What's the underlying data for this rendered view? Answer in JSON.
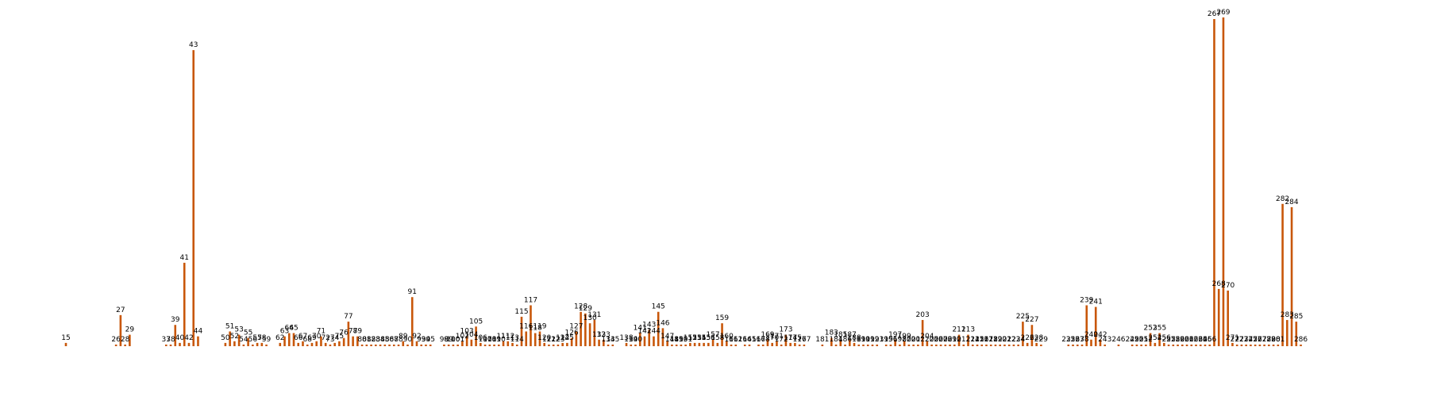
{
  "colors": {
    "bar": "#c8570a",
    "text": "#000000",
    "background": "#ffffff"
  },
  "chart_data": {
    "type": "bar",
    "title": "",
    "xlabel": "",
    "ylabel": "",
    "axes_visible": false,
    "grid": false,
    "legend": "none",
    "ylim": [
      0,
      100
    ],
    "x_start": 1,
    "x_end": 287,
    "labeled_bars": [
      {
        "x": 15,
        "value": 1.0
      },
      {
        "x": 26,
        "value": 0.5
      },
      {
        "x": 27,
        "value": 9.5
      },
      {
        "x": 28,
        "value": 0.5
      },
      {
        "x": 29,
        "value": 3.5
      },
      {
        "x": 37,
        "value": 0.5
      },
      {
        "x": 38,
        "value": 0.5
      },
      {
        "x": 39,
        "value": 6.5
      },
      {
        "x": 40,
        "value": 1.0
      },
      {
        "x": 41,
        "value": 25.5
      },
      {
        "x": 42,
        "value": 1.0
      },
      {
        "x": 43,
        "value": 90.5
      },
      {
        "x": 44,
        "value": 3.0
      },
      {
        "x": 50,
        "value": 1.0
      },
      {
        "x": 51,
        "value": 4.5
      },
      {
        "x": 52,
        "value": 1.5
      },
      {
        "x": 53,
        "value": 3.5
      },
      {
        "x": 54,
        "value": 0.5
      },
      {
        "x": 55,
        "value": 2.5
      },
      {
        "x": 56,
        "value": 0.5
      },
      {
        "x": 57,
        "value": 1.0
      },
      {
        "x": 58,
        "value": 1.0
      },
      {
        "x": 59,
        "value": 0.5
      },
      {
        "x": 62,
        "value": 1.0
      },
      {
        "x": 63,
        "value": 3.0
      },
      {
        "x": 64,
        "value": 4.0
      },
      {
        "x": 65,
        "value": 4.0
      },
      {
        "x": 66,
        "value": 1.0
      },
      {
        "x": 67,
        "value": 1.5
      },
      {
        "x": 68,
        "value": 0.5
      },
      {
        "x": 69,
        "value": 1.0
      },
      {
        "x": 70,
        "value": 1.5
      },
      {
        "x": 71,
        "value": 3.0
      },
      {
        "x": 72,
        "value": 1.0
      },
      {
        "x": 73,
        "value": 0.5
      },
      {
        "x": 74,
        "value": 1.0
      },
      {
        "x": 75,
        "value": 1.5
      },
      {
        "x": 76,
        "value": 2.5
      },
      {
        "x": 77,
        "value": 7.5
      },
      {
        "x": 78,
        "value": 3.0
      },
      {
        "x": 79,
        "value": 3.0
      },
      {
        "x": 80,
        "value": 0.5
      },
      {
        "x": 81,
        "value": 0.5
      },
      {
        "x": 82,
        "value": 0.5
      },
      {
        "x": 83,
        "value": 0.5
      },
      {
        "x": 84,
        "value": 0.5
      },
      {
        "x": 85,
        "value": 0.5
      },
      {
        "x": 86,
        "value": 0.5
      },
      {
        "x": 87,
        "value": 0.5
      },
      {
        "x": 88,
        "value": 0.5
      },
      {
        "x": 89,
        "value": 1.5
      },
      {
        "x": 90,
        "value": 0.5
      },
      {
        "x": 91,
        "value": 15.0
      },
      {
        "x": 92,
        "value": 1.5
      },
      {
        "x": 93,
        "value": 0.5
      },
      {
        "x": 94,
        "value": 0.5
      },
      {
        "x": 95,
        "value": 0.5
      },
      {
        "x": 98,
        "value": 0.5
      },
      {
        "x": 99,
        "value": 0.5
      },
      {
        "x": 100,
        "value": 0.5
      },
      {
        "x": 101,
        "value": 0.5
      },
      {
        "x": 102,
        "value": 1.5
      },
      {
        "x": 103,
        "value": 3.0
      },
      {
        "x": 104,
        "value": 2.0
      },
      {
        "x": 105,
        "value": 6.0
      },
      {
        "x": 106,
        "value": 1.0
      },
      {
        "x": 107,
        "value": 0.5
      },
      {
        "x": 108,
        "value": 0.5
      },
      {
        "x": 109,
        "value": 0.5
      },
      {
        "x": 110,
        "value": 0.5
      },
      {
        "x": 111,
        "value": 1.5
      },
      {
        "x": 112,
        "value": 1.5
      },
      {
        "x": 113,
        "value": 1.0
      },
      {
        "x": 114,
        "value": 0.5
      },
      {
        "x": 115,
        "value": 9.0
      },
      {
        "x": 116,
        "value": 4.5
      },
      {
        "x": 117,
        "value": 12.5
      },
      {
        "x": 118,
        "value": 4.0
      },
      {
        "x": 119,
        "value": 4.5
      },
      {
        "x": 120,
        "value": 1.0
      },
      {
        "x": 121,
        "value": 0.5
      },
      {
        "x": 122,
        "value": 0.5
      },
      {
        "x": 123,
        "value": 0.5
      },
      {
        "x": 124,
        "value": 1.0
      },
      {
        "x": 125,
        "value": 1.0
      },
      {
        "x": 126,
        "value": 2.5
      },
      {
        "x": 127,
        "value": 4.5
      },
      {
        "x": 128,
        "value": 10.5
      },
      {
        "x": 129,
        "value": 10.0
      },
      {
        "x": 130,
        "value": 7.0
      },
      {
        "x": 131,
        "value": 8.0
      },
      {
        "x": 132,
        "value": 2.0
      },
      {
        "x": 133,
        "value": 2.0
      },
      {
        "x": 134,
        "value": 0.5
      },
      {
        "x": 135,
        "value": 0.5
      },
      {
        "x": 138,
        "value": 1.0
      },
      {
        "x": 139,
        "value": 0.5
      },
      {
        "x": 140,
        "value": 0.5
      },
      {
        "x": 141,
        "value": 4.0
      },
      {
        "x": 142,
        "value": 3.0
      },
      {
        "x": 143,
        "value": 5.0
      },
      {
        "x": 144,
        "value": 3.0
      },
      {
        "x": 145,
        "value": 10.5
      },
      {
        "x": 146,
        "value": 5.5
      },
      {
        "x": 147,
        "value": 1.5
      },
      {
        "x": 148,
        "value": 0.5
      },
      {
        "x": 149,
        "value": 0.5
      },
      {
        "x": 150,
        "value": 0.5
      },
      {
        "x": 151,
        "value": 0.5
      },
      {
        "x": 152,
        "value": 1.0
      },
      {
        "x": 153,
        "value": 1.0
      },
      {
        "x": 154,
        "value": 1.0
      },
      {
        "x": 155,
        "value": 1.0
      },
      {
        "x": 156,
        "value": 1.0
      },
      {
        "x": 157,
        "value": 2.0
      },
      {
        "x": 158,
        "value": 1.0
      },
      {
        "x": 159,
        "value": 7.0
      },
      {
        "x": 160,
        "value": 1.5
      },
      {
        "x": 161,
        "value": 0.5
      },
      {
        "x": 162,
        "value": 0.5
      },
      {
        "x": 164,
        "value": 0.5
      },
      {
        "x": 165,
        "value": 0.5
      },
      {
        "x": 167,
        "value": 0.5
      },
      {
        "x": 168,
        "value": 0.5
      },
      {
        "x": 169,
        "value": 2.0
      },
      {
        "x": 170,
        "value": 1.0
      },
      {
        "x": 171,
        "value": 1.5
      },
      {
        "x": 172,
        "value": 0.5
      },
      {
        "x": 173,
        "value": 3.5
      },
      {
        "x": 174,
        "value": 1.0
      },
      {
        "x": 175,
        "value": 1.0
      },
      {
        "x": 176,
        "value": 0.5
      },
      {
        "x": 177,
        "value": 0.5
      },
      {
        "x": 181,
        "value": 0.5
      },
      {
        "x": 183,
        "value": 2.5
      },
      {
        "x": 184,
        "value": 0.5
      },
      {
        "x": 185,
        "value": 2.0
      },
      {
        "x": 186,
        "value": 0.5
      },
      {
        "x": 187,
        "value": 2.0
      },
      {
        "x": 188,
        "value": 1.0
      },
      {
        "x": 189,
        "value": 0.5
      },
      {
        "x": 190,
        "value": 0.5
      },
      {
        "x": 191,
        "value": 0.5
      },
      {
        "x": 192,
        "value": 0.5
      },
      {
        "x": 193,
        "value": 0.5
      },
      {
        "x": 195,
        "value": 0.5
      },
      {
        "x": 196,
        "value": 0.5
      },
      {
        "x": 197,
        "value": 2.0
      },
      {
        "x": 198,
        "value": 0.5
      },
      {
        "x": 199,
        "value": 1.5
      },
      {
        "x": 200,
        "value": 0.5
      },
      {
        "x": 201,
        "value": 0.5
      },
      {
        "x": 202,
        "value": 0.5
      },
      {
        "x": 203,
        "value": 8.0
      },
      {
        "x": 204,
        "value": 1.5
      },
      {
        "x": 205,
        "value": 0.5
      },
      {
        "x": 206,
        "value": 0.5
      },
      {
        "x": 207,
        "value": 0.5
      },
      {
        "x": 208,
        "value": 0.5
      },
      {
        "x": 209,
        "value": 0.5
      },
      {
        "x": 210,
        "value": 0.5
      },
      {
        "x": 211,
        "value": 3.5
      },
      {
        "x": 212,
        "value": 0.5
      },
      {
        "x": 213,
        "value": 3.5
      },
      {
        "x": 214,
        "value": 0.5
      },
      {
        "x": 215,
        "value": 0.5
      },
      {
        "x": 216,
        "value": 0.5
      },
      {
        "x": 217,
        "value": 0.5
      },
      {
        "x": 218,
        "value": 0.5
      },
      {
        "x": 219,
        "value": 0.5
      },
      {
        "x": 220,
        "value": 0.5
      },
      {
        "x": 221,
        "value": 0.5
      },
      {
        "x": 222,
        "value": 0.5
      },
      {
        "x": 223,
        "value": 0.5
      },
      {
        "x": 224,
        "value": 0.5
      },
      {
        "x": 225,
        "value": 7.5
      },
      {
        "x": 226,
        "value": 1.0
      },
      {
        "x": 227,
        "value": 6.5
      },
      {
        "x": 228,
        "value": 1.0
      },
      {
        "x": 229,
        "value": 0.5
      },
      {
        "x": 235,
        "value": 0.5
      },
      {
        "x": 236,
        "value": 0.5
      },
      {
        "x": 237,
        "value": 0.5
      },
      {
        "x": 238,
        "value": 0.5
      },
      {
        "x": 239,
        "value": 12.5
      },
      {
        "x": 240,
        "value": 2.0
      },
      {
        "x": 241,
        "value": 12.0
      },
      {
        "x": 242,
        "value": 2.0
      },
      {
        "x": 243,
        "value": 0.5
      },
      {
        "x": 246,
        "value": 0.5
      },
      {
        "x": 249,
        "value": 0.5
      },
      {
        "x": 250,
        "value": 0.5
      },
      {
        "x": 251,
        "value": 0.5
      },
      {
        "x": 252,
        "value": 0.5
      },
      {
        "x": 253,
        "value": 4.0
      },
      {
        "x": 254,
        "value": 1.0
      },
      {
        "x": 255,
        "value": 4.0
      },
      {
        "x": 256,
        "value": 1.0
      },
      {
        "x": 257,
        "value": 0.5
      },
      {
        "x": 258,
        "value": 0.5
      },
      {
        "x": 259,
        "value": 0.5
      },
      {
        "x": 260,
        "value": 0.5
      },
      {
        "x": 261,
        "value": 0.5
      },
      {
        "x": 262,
        "value": 0.5
      },
      {
        "x": 263,
        "value": 0.5
      },
      {
        "x": 264,
        "value": 0.5
      },
      {
        "x": 265,
        "value": 0.5
      },
      {
        "x": 266,
        "value": 0.5
      },
      {
        "x": 267,
        "value": 100.0
      },
      {
        "x": 268,
        "value": 17.5
      },
      {
        "x": 269,
        "value": 100.5
      },
      {
        "x": 270,
        "value": 17.0
      },
      {
        "x": 271,
        "value": 1.0
      },
      {
        "x": 272,
        "value": 0.5
      },
      {
        "x": 273,
        "value": 0.5
      },
      {
        "x": 274,
        "value": 0.5
      },
      {
        "x": 275,
        "value": 0.5
      },
      {
        "x": 276,
        "value": 0.5
      },
      {
        "x": 277,
        "value": 0.5
      },
      {
        "x": 278,
        "value": 0.5
      },
      {
        "x": 279,
        "value": 0.5
      },
      {
        "x": 280,
        "value": 0.5
      },
      {
        "x": 281,
        "value": 0.5
      },
      {
        "x": 282,
        "value": 43.5
      },
      {
        "x": 283,
        "value": 8.0
      },
      {
        "x": 284,
        "value": 42.5
      },
      {
        "x": 285,
        "value": 7.5
      },
      {
        "x": 286,
        "value": 0.5
      }
    ]
  }
}
